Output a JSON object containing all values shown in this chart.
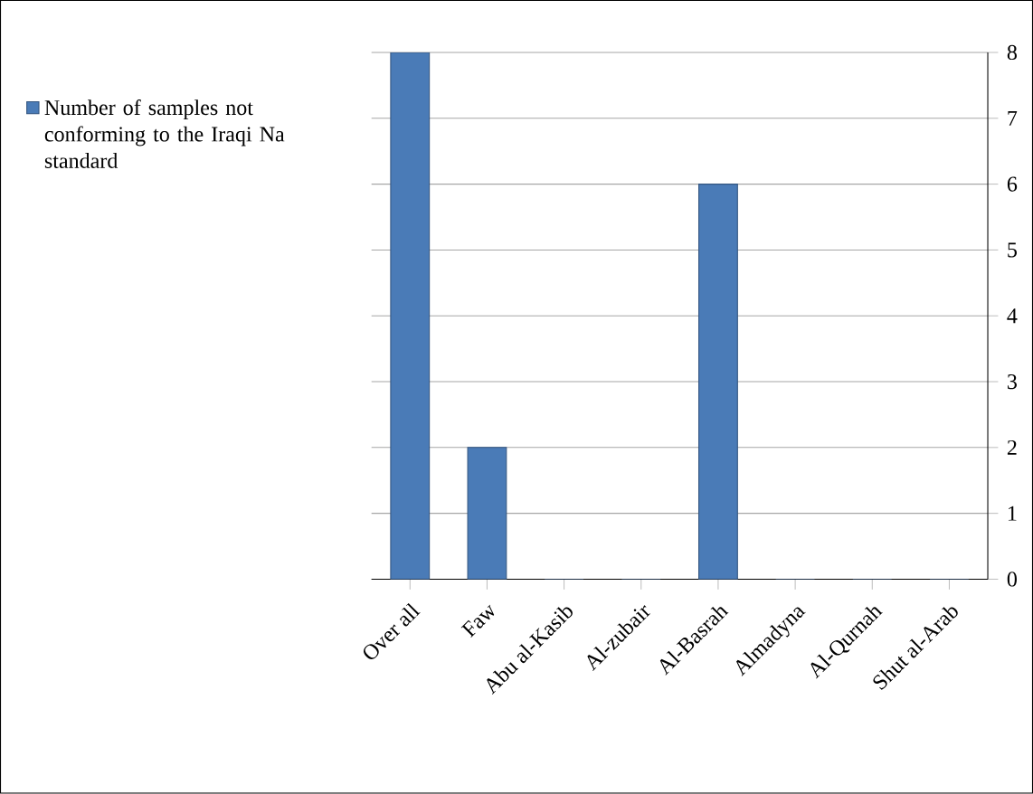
{
  "chart_data": {
    "type": "bar",
    "categories": [
      "Over all",
      "Faw",
      "Abu al-Kasib",
      "Al-zubair",
      "Al-Basrah",
      "Almadyna",
      "Al-Qurnah",
      "Shut al-Arab"
    ],
    "series": [
      {
        "name": "Number of samples not conforming to the Iraqi Na standard",
        "color": "#4a7bb7",
        "values": [
          8,
          2,
          0,
          0,
          6,
          0,
          0,
          0
        ]
      }
    ],
    "ylim": [
      0,
      8
    ],
    "yticks": [
      0,
      1,
      2,
      3,
      4,
      5,
      6,
      7,
      8
    ],
    "grid": "y",
    "legend": "left"
  }
}
